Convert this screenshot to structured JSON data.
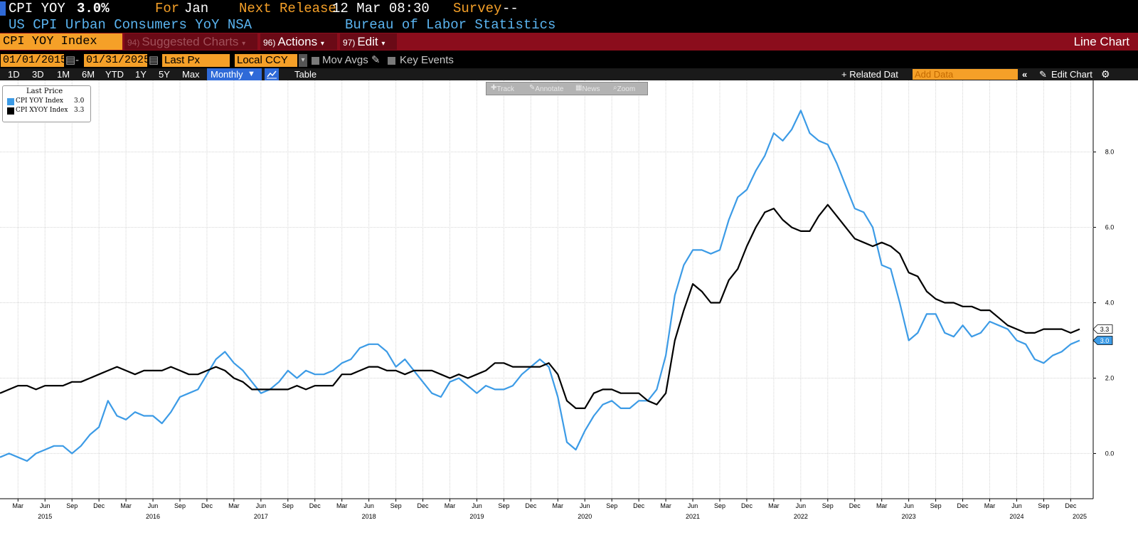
{
  "header": {
    "ticker": "CPI YOY",
    "value": "3.0%",
    "for_label": "For",
    "for_value": "Jan",
    "next_label": "Next Release",
    "next_value": "12 Mar 08:30",
    "survey_label": "Survey",
    "survey_value": "--",
    "subtitle": "US CPI Urban Consumers YoY NSA",
    "source": "Bureau of Labor Statistics"
  },
  "toolbar": {
    "security": "CPI YOY Index",
    "suggested_num": "94)",
    "suggested_label": "Suggested Charts",
    "actions_num": "96)",
    "actions_label": "Actions",
    "edit_num": "97)",
    "edit_label": "Edit",
    "chart_type": "Line Chart"
  },
  "controls": {
    "start_date": "01/01/2015",
    "end_date": "01/31/2025",
    "field": "Last Px",
    "currency": "Local CCY",
    "mov_avgs": "Mov Avgs",
    "key_events": "Key Events"
  },
  "ranges": {
    "items": [
      "1D",
      "3D",
      "1M",
      "6M",
      "YTD",
      "1Y",
      "5Y",
      "Max"
    ],
    "frequency": "Monthly",
    "table": "Table",
    "related": "+ Related Dat",
    "add_data_placeholder": "Add Data",
    "edit_chart": "Edit Chart"
  },
  "chart_tools": {
    "track": "Track",
    "annotate": "Annotate",
    "news": "News",
    "zoom": "Zoom"
  },
  "legend": {
    "title": "Last Price"
  },
  "colors": {
    "blue_series": "#3c9be6",
    "black_series": "#000000",
    "accent": "#f5a028",
    "toolbar": "#8b0d1c"
  },
  "chart_data": {
    "type": "line",
    "ylim": [
      -1.2,
      9.9
    ],
    "yticks": [
      0.0,
      2.0,
      4.0,
      6.0,
      8.0
    ],
    "ytick_labels": [
      "0.0",
      "2.0",
      "4.0",
      "6.0",
      "8.0"
    ],
    "x_start": "2015-01",
    "x_end": "2025-01",
    "month_ticks": [
      {
        "month": "2015-03",
        "label": "Mar"
      },
      {
        "month": "2015-06",
        "label": "Jun"
      },
      {
        "month": "2015-09",
        "label": "Sep"
      },
      {
        "month": "2015-12",
        "label": "Dec"
      },
      {
        "month": "2016-03",
        "label": "Mar"
      },
      {
        "month": "2016-06",
        "label": "Jun"
      },
      {
        "month": "2016-09",
        "label": "Sep"
      },
      {
        "month": "2016-12",
        "label": "Dec"
      },
      {
        "month": "2017-03",
        "label": "Mar"
      },
      {
        "month": "2017-06",
        "label": "Jun"
      },
      {
        "month": "2017-09",
        "label": "Sep"
      },
      {
        "month": "2017-12",
        "label": "Dec"
      },
      {
        "month": "2018-03",
        "label": "Mar"
      },
      {
        "month": "2018-06",
        "label": "Jun"
      },
      {
        "month": "2018-09",
        "label": "Sep"
      },
      {
        "month": "2018-12",
        "label": "Dec"
      },
      {
        "month": "2019-03",
        "label": "Mar"
      },
      {
        "month": "2019-06",
        "label": "Jun"
      },
      {
        "month": "2019-09",
        "label": "Sep"
      },
      {
        "month": "2019-12",
        "label": "Dec"
      },
      {
        "month": "2020-03",
        "label": "Mar"
      },
      {
        "month": "2020-06",
        "label": "Jun"
      },
      {
        "month": "2020-09",
        "label": "Sep"
      },
      {
        "month": "2020-12",
        "label": "Dec"
      },
      {
        "month": "2021-03",
        "label": "Mar"
      },
      {
        "month": "2021-06",
        "label": "Jun"
      },
      {
        "month": "2021-09",
        "label": "Sep"
      },
      {
        "month": "2021-12",
        "label": "Dec"
      },
      {
        "month": "2022-03",
        "label": "Mar"
      },
      {
        "month": "2022-06",
        "label": "Jun"
      },
      {
        "month": "2022-09",
        "label": "Sep"
      },
      {
        "month": "2022-12",
        "label": "Dec"
      },
      {
        "month": "2023-03",
        "label": "Mar"
      },
      {
        "month": "2023-06",
        "label": "Jun"
      },
      {
        "month": "2023-09",
        "label": "Sep"
      },
      {
        "month": "2023-12",
        "label": "Dec"
      },
      {
        "month": "2024-03",
        "label": "Mar"
      },
      {
        "month": "2024-06",
        "label": "Jun"
      },
      {
        "month": "2024-09",
        "label": "Sep"
      },
      {
        "month": "2024-12",
        "label": "Dec"
      }
    ],
    "year_ticks": [
      {
        "month": "2015-06",
        "label": "2015"
      },
      {
        "month": "2016-06",
        "label": "2016"
      },
      {
        "month": "2017-06",
        "label": "2017"
      },
      {
        "month": "2018-06",
        "label": "2018"
      },
      {
        "month": "2019-06",
        "label": "2019"
      },
      {
        "month": "2020-06",
        "label": "2020"
      },
      {
        "month": "2021-06",
        "label": "2021"
      },
      {
        "month": "2022-06",
        "label": "2022"
      },
      {
        "month": "2023-06",
        "label": "2023"
      },
      {
        "month": "2024-06",
        "label": "2024"
      },
      {
        "month": "2025-01",
        "label": "2025"
      }
    ],
    "series": [
      {
        "name": "CPI YOY Index",
        "last": "3.0",
        "color": "#3c9be6",
        "values": [
          -0.1,
          0.0,
          -0.1,
          -0.2,
          0.0,
          0.1,
          0.2,
          0.2,
          0.0,
          0.2,
          0.5,
          0.7,
          1.4,
          1.0,
          0.9,
          1.1,
          1.0,
          1.0,
          0.8,
          1.1,
          1.5,
          1.6,
          1.7,
          2.1,
          2.5,
          2.7,
          2.4,
          2.2,
          1.9,
          1.6,
          1.7,
          1.9,
          2.2,
          2.0,
          2.2,
          2.1,
          2.1,
          2.2,
          2.4,
          2.5,
          2.8,
          2.9,
          2.9,
          2.7,
          2.3,
          2.5,
          2.2,
          1.9,
          1.6,
          1.5,
          1.9,
          2.0,
          1.8,
          1.6,
          1.8,
          1.7,
          1.7,
          1.8,
          2.1,
          2.3,
          2.5,
          2.3,
          1.5,
          0.3,
          0.1,
          0.6,
          1.0,
          1.3,
          1.4,
          1.2,
          1.2,
          1.4,
          1.4,
          1.7,
          2.6,
          4.2,
          5.0,
          5.4,
          5.4,
          5.3,
          5.4,
          6.2,
          6.8,
          7.0,
          7.5,
          7.9,
          8.5,
          8.3,
          8.6,
          9.1,
          8.5,
          8.3,
          8.2,
          7.7,
          7.1,
          6.5,
          6.4,
          6.0,
          5.0,
          4.9,
          4.0,
          3.0,
          3.2,
          3.7,
          3.7,
          3.2,
          3.1,
          3.4,
          3.1,
          3.2,
          3.5,
          3.4,
          3.3,
          3.0,
          2.9,
          2.5,
          2.4,
          2.6,
          2.7,
          2.9,
          3.0
        ]
      },
      {
        "name": "CPI XYOY Index",
        "last": "3.3",
        "color": "#000000",
        "values": [
          1.6,
          1.7,
          1.8,
          1.8,
          1.7,
          1.8,
          1.8,
          1.8,
          1.9,
          1.9,
          2.0,
          2.1,
          2.2,
          2.3,
          2.2,
          2.1,
          2.2,
          2.2,
          2.2,
          2.3,
          2.2,
          2.1,
          2.1,
          2.2,
          2.3,
          2.2,
          2.0,
          1.9,
          1.7,
          1.7,
          1.7,
          1.7,
          1.7,
          1.8,
          1.7,
          1.8,
          1.8,
          1.8,
          2.1,
          2.1,
          2.2,
          2.3,
          2.3,
          2.2,
          2.2,
          2.1,
          2.2,
          2.2,
          2.2,
          2.1,
          2.0,
          2.1,
          2.0,
          2.1,
          2.2,
          2.4,
          2.4,
          2.3,
          2.3,
          2.3,
          2.3,
          2.4,
          2.1,
          1.4,
          1.2,
          1.2,
          1.6,
          1.7,
          1.7,
          1.6,
          1.6,
          1.6,
          1.4,
          1.3,
          1.6,
          3.0,
          3.8,
          4.5,
          4.3,
          4.0,
          4.0,
          4.6,
          4.9,
          5.5,
          6.0,
          6.4,
          6.5,
          6.2,
          6.0,
          5.9,
          5.9,
          6.3,
          6.6,
          6.3,
          6.0,
          5.7,
          5.6,
          5.5,
          5.6,
          5.5,
          5.3,
          4.8,
          4.7,
          4.3,
          4.1,
          4.0,
          4.0,
          3.9,
          3.9,
          3.8,
          3.8,
          3.6,
          3.4,
          3.3,
          3.2,
          3.2,
          3.3,
          3.3,
          3.3,
          3.2,
          3.3
        ]
      }
    ]
  }
}
